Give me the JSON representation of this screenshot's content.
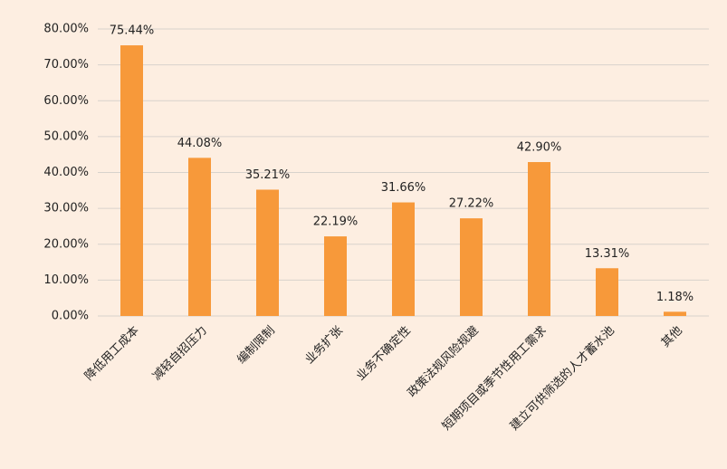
{
  "chart_data": {
    "type": "bar",
    "categories": [
      "降低用工成本",
      "减轻自招压力",
      "编制限制",
      "业务扩张",
      "业务不确定性",
      "政策法规风险规避",
      "短期项目或季节性用工需求",
      "建立可供筛选的人才蓄水池",
      "其他"
    ],
    "values": [
      75.44,
      44.08,
      35.21,
      22.19,
      31.66,
      27.22,
      42.9,
      13.31,
      1.18
    ],
    "value_labels": [
      "75.44%",
      "44.08%",
      "35.21%",
      "22.19%",
      "31.66%",
      "27.22%",
      "42.90%",
      "13.31%",
      "1.18%"
    ],
    "color": "#f7993a",
    "ylim": [
      0,
      80
    ],
    "yticks": [
      {
        "value": 0,
        "label": "0.00%"
      },
      {
        "value": 10,
        "label": "10.00%"
      },
      {
        "value": 20,
        "label": "20.00%"
      },
      {
        "value": 30,
        "label": "30.00%"
      },
      {
        "value": 40,
        "label": "40.00%"
      },
      {
        "value": 50,
        "label": "50.00%"
      },
      {
        "value": 60,
        "label": "60.00%"
      },
      {
        "value": 70,
        "label": "70.00%"
      },
      {
        "value": 80,
        "label": "80.00%"
      }
    ],
    "grid": true
  }
}
